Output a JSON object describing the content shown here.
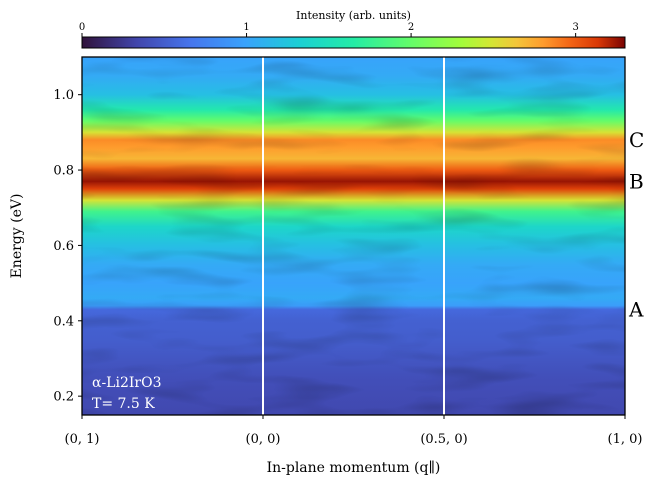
{
  "chart_data": {
    "type": "heatmap",
    "title": "",
    "xlabel": "In-plane momentum (q∥)",
    "ylabel": "Energy (eV)",
    "x_ticks": [
      "(0, 1)",
      "(0, 0)",
      "(0.5, 0)",
      "(1, 0)"
    ],
    "y_ticks": [
      0.2,
      0.4,
      0.6,
      0.8,
      1.0
    ],
    "ylim": [
      0.15,
      1.1
    ],
    "colorbar": {
      "label": "Intensity (arb. units)",
      "range": [
        0,
        3.3
      ],
      "ticks": [
        0,
        1,
        2,
        3
      ],
      "colormap": "turbo"
    },
    "vertical_lines_at": [
      "(0, 0)",
      "(0.5, 0)"
    ],
    "peak_labels": [
      {
        "text": "C",
        "energy": 0.88
      },
      {
        "text": "B",
        "energy": 0.77
      },
      {
        "text": "A",
        "energy": 0.43
      }
    ],
    "annotation": {
      "material": "α-Li2IrO3",
      "temperature": "T= 7.5 K"
    },
    "energy_profile": [
      [
        0.15,
        0.35
      ],
      [
        0.25,
        0.4
      ],
      [
        0.35,
        0.5
      ],
      [
        0.4,
        0.52
      ],
      [
        0.43,
        0.58
      ],
      [
        0.44,
        0.95
      ],
      [
        0.46,
        1.05
      ],
      [
        0.5,
        1.0
      ],
      [
        0.55,
        1.05
      ],
      [
        0.6,
        1.2
      ],
      [
        0.65,
        1.4
      ],
      [
        0.69,
        1.8
      ],
      [
        0.72,
        2.5
      ],
      [
        0.75,
        3.1
      ],
      [
        0.77,
        3.25
      ],
      [
        0.8,
        3.0
      ],
      [
        0.83,
        2.7
      ],
      [
        0.86,
        2.8
      ],
      [
        0.88,
        2.85
      ],
      [
        0.9,
        2.5
      ],
      [
        0.93,
        2.0
      ],
      [
        0.96,
        1.6
      ],
      [
        1.0,
        1.2
      ],
      [
        1.05,
        1.05
      ],
      [
        1.1,
        1.0
      ]
    ]
  }
}
